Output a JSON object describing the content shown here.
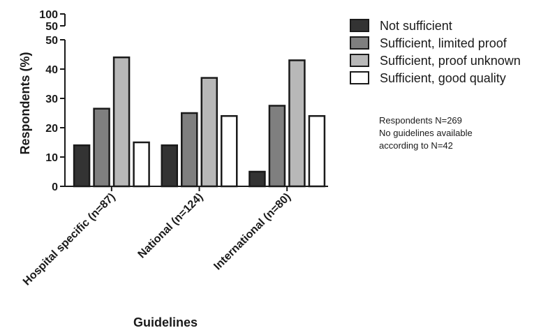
{
  "chart_data": {
    "type": "bar",
    "title": "",
    "xlabel": "Guidelines",
    "ylabel": "Respondents (%)",
    "ylim": [
      0,
      50
    ],
    "y_ticks": [
      0,
      10,
      20,
      30,
      40,
      50
    ],
    "y_break_ticks": [
      50,
      100
    ],
    "categories": [
      "Hospital specific (n=87)",
      "National (n=124)",
      "International (n=80)"
    ],
    "series": [
      {
        "name": "Not sufficient",
        "color": "#333333",
        "values": [
          14,
          14,
          5
        ]
      },
      {
        "name": "Sufficient, limited proof",
        "color": "#7f7f7f",
        "values": [
          26.5,
          25,
          27.5
        ]
      },
      {
        "name": "Sufficient, proof unknown",
        "color": "#b8b8b8",
        "values": [
          44,
          37,
          43
        ]
      },
      {
        "name": "Sufficient, good quality",
        "color": "#ffffff",
        "values": [
          15,
          24,
          24
        ]
      }
    ],
    "legend_position": "top-right",
    "grid": false,
    "annotations": [
      "Respondents N=269",
      "No guidelines available",
      "according to N=42"
    ]
  }
}
